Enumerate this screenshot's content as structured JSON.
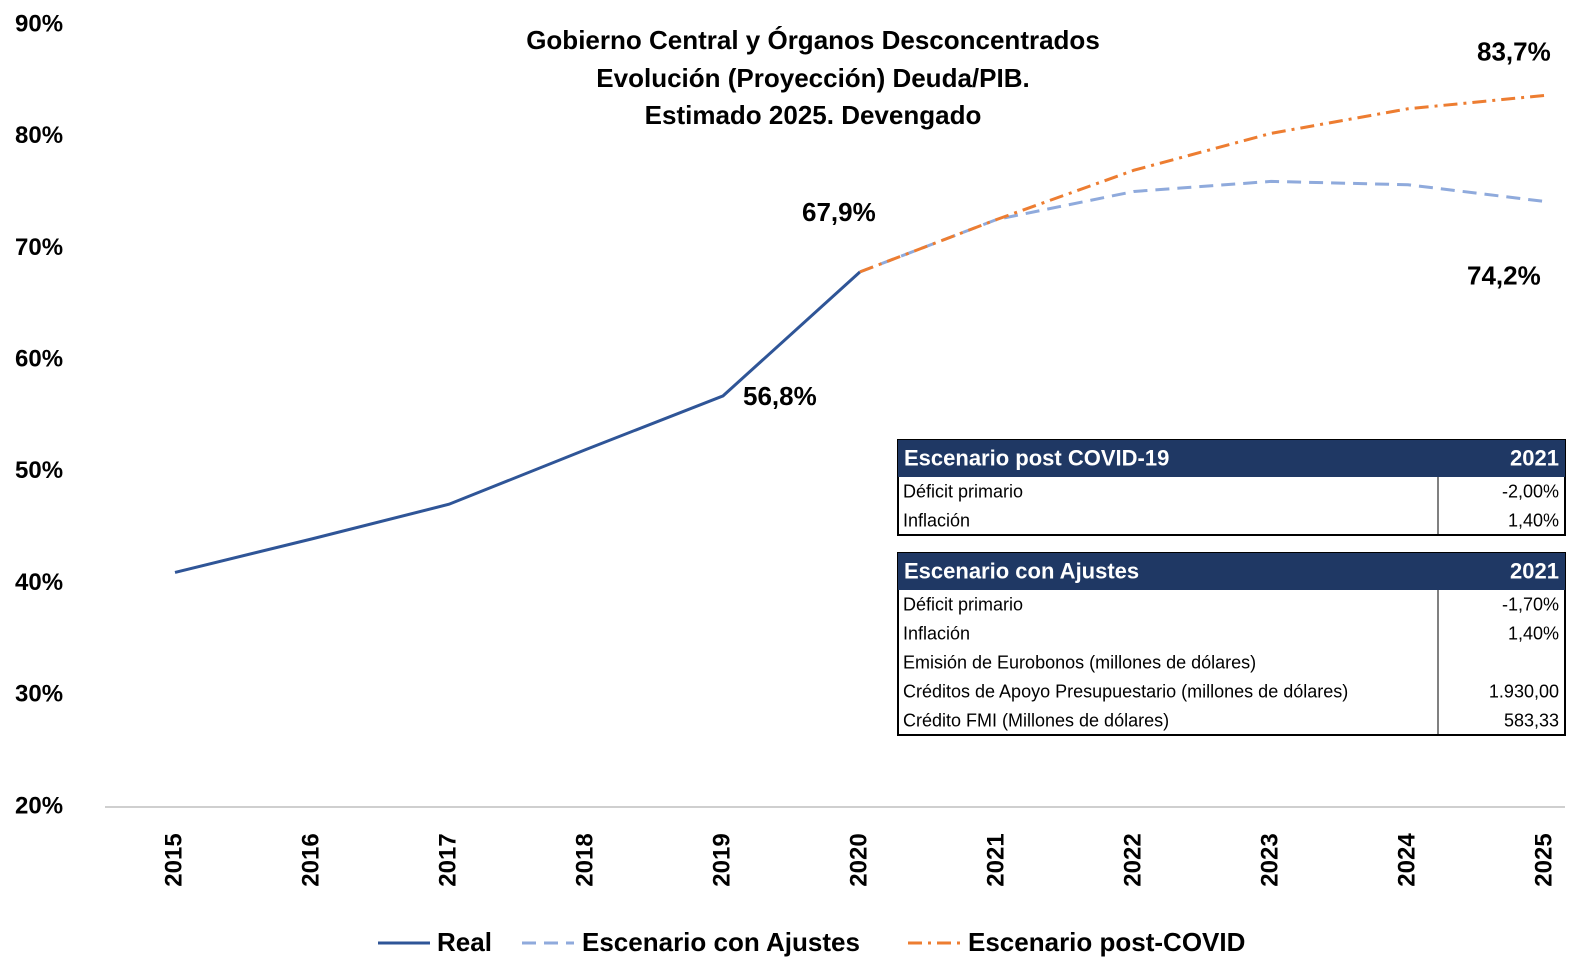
{
  "chart_data": {
    "type": "line",
    "title": [
      "Gobierno Central y Órganos Desconcentrados",
      "Evolución (Proyección) Deuda/PIB.",
      "Estimado 2025. Devengado"
    ],
    "categories": [
      "2015",
      "2016",
      "2017",
      "2018",
      "2019",
      "2020",
      "2021",
      "2022",
      "2023",
      "2024",
      "2025"
    ],
    "series": [
      {
        "name": "Real",
        "color": "#2f5597",
        "dash": "solid",
        "values": [
          41.0,
          44.0,
          47.1,
          52.0,
          56.8,
          67.9,
          null,
          null,
          null,
          null,
          null
        ],
        "value_labels": [
          null,
          null,
          null,
          null,
          "56,8%",
          "67,9%",
          null,
          null,
          null,
          null,
          null
        ]
      },
      {
        "name": "Escenario con Ajustes",
        "color": "#8faadc",
        "dash": "dash",
        "values": [
          null,
          null,
          null,
          null,
          null,
          67.9,
          72.6,
          75.1,
          76.0,
          75.7,
          74.2
        ],
        "value_labels": [
          null,
          null,
          null,
          null,
          null,
          null,
          null,
          null,
          null,
          null,
          "74,2%"
        ]
      },
      {
        "name": "Escenario post-COVID",
        "color": "#ed7d31",
        "dash": "dashdot",
        "values": [
          null,
          null,
          null,
          null,
          null,
          67.9,
          72.6,
          77.0,
          80.3,
          82.5,
          83.7
        ],
        "value_labels": [
          null,
          null,
          null,
          null,
          null,
          null,
          null,
          null,
          null,
          null,
          "83,7%"
        ]
      }
    ],
    "ylim": [
      20,
      90
    ],
    "yticks": [
      {
        "value": 20,
        "label": "20%"
      },
      {
        "value": 30,
        "label": "30%"
      },
      {
        "value": 40,
        "label": "40%"
      },
      {
        "value": 50,
        "label": "50%"
      },
      {
        "value": 60,
        "label": "60%"
      },
      {
        "value": 70,
        "label": "70%"
      },
      {
        "value": 80,
        "label": "80%"
      },
      {
        "value": 90,
        "label": "90%"
      }
    ],
    "grid": false,
    "legend": "bottom"
  },
  "tables": [
    {
      "title": "Escenario post COVID-19",
      "year": "2021",
      "rows": [
        [
          "Déficit primario",
          "-2,00%"
        ],
        [
          "Inflación",
          "1,40%"
        ]
      ]
    },
    {
      "title": "Escenario con Ajustes",
      "year": "2021",
      "rows": [
        [
          "Déficit primario",
          "-1,70%"
        ],
        [
          "Inflación",
          "1,40%"
        ],
        [
          "Emisión de Eurobonos (millones de dólares)",
          null
        ],
        [
          "Créditos de Apoyo Presupuestario (millones de dólares)",
          "1.930,00"
        ],
        [
          "Crédito FMI (Millones de dólares)",
          "583,33"
        ]
      ]
    }
  ]
}
